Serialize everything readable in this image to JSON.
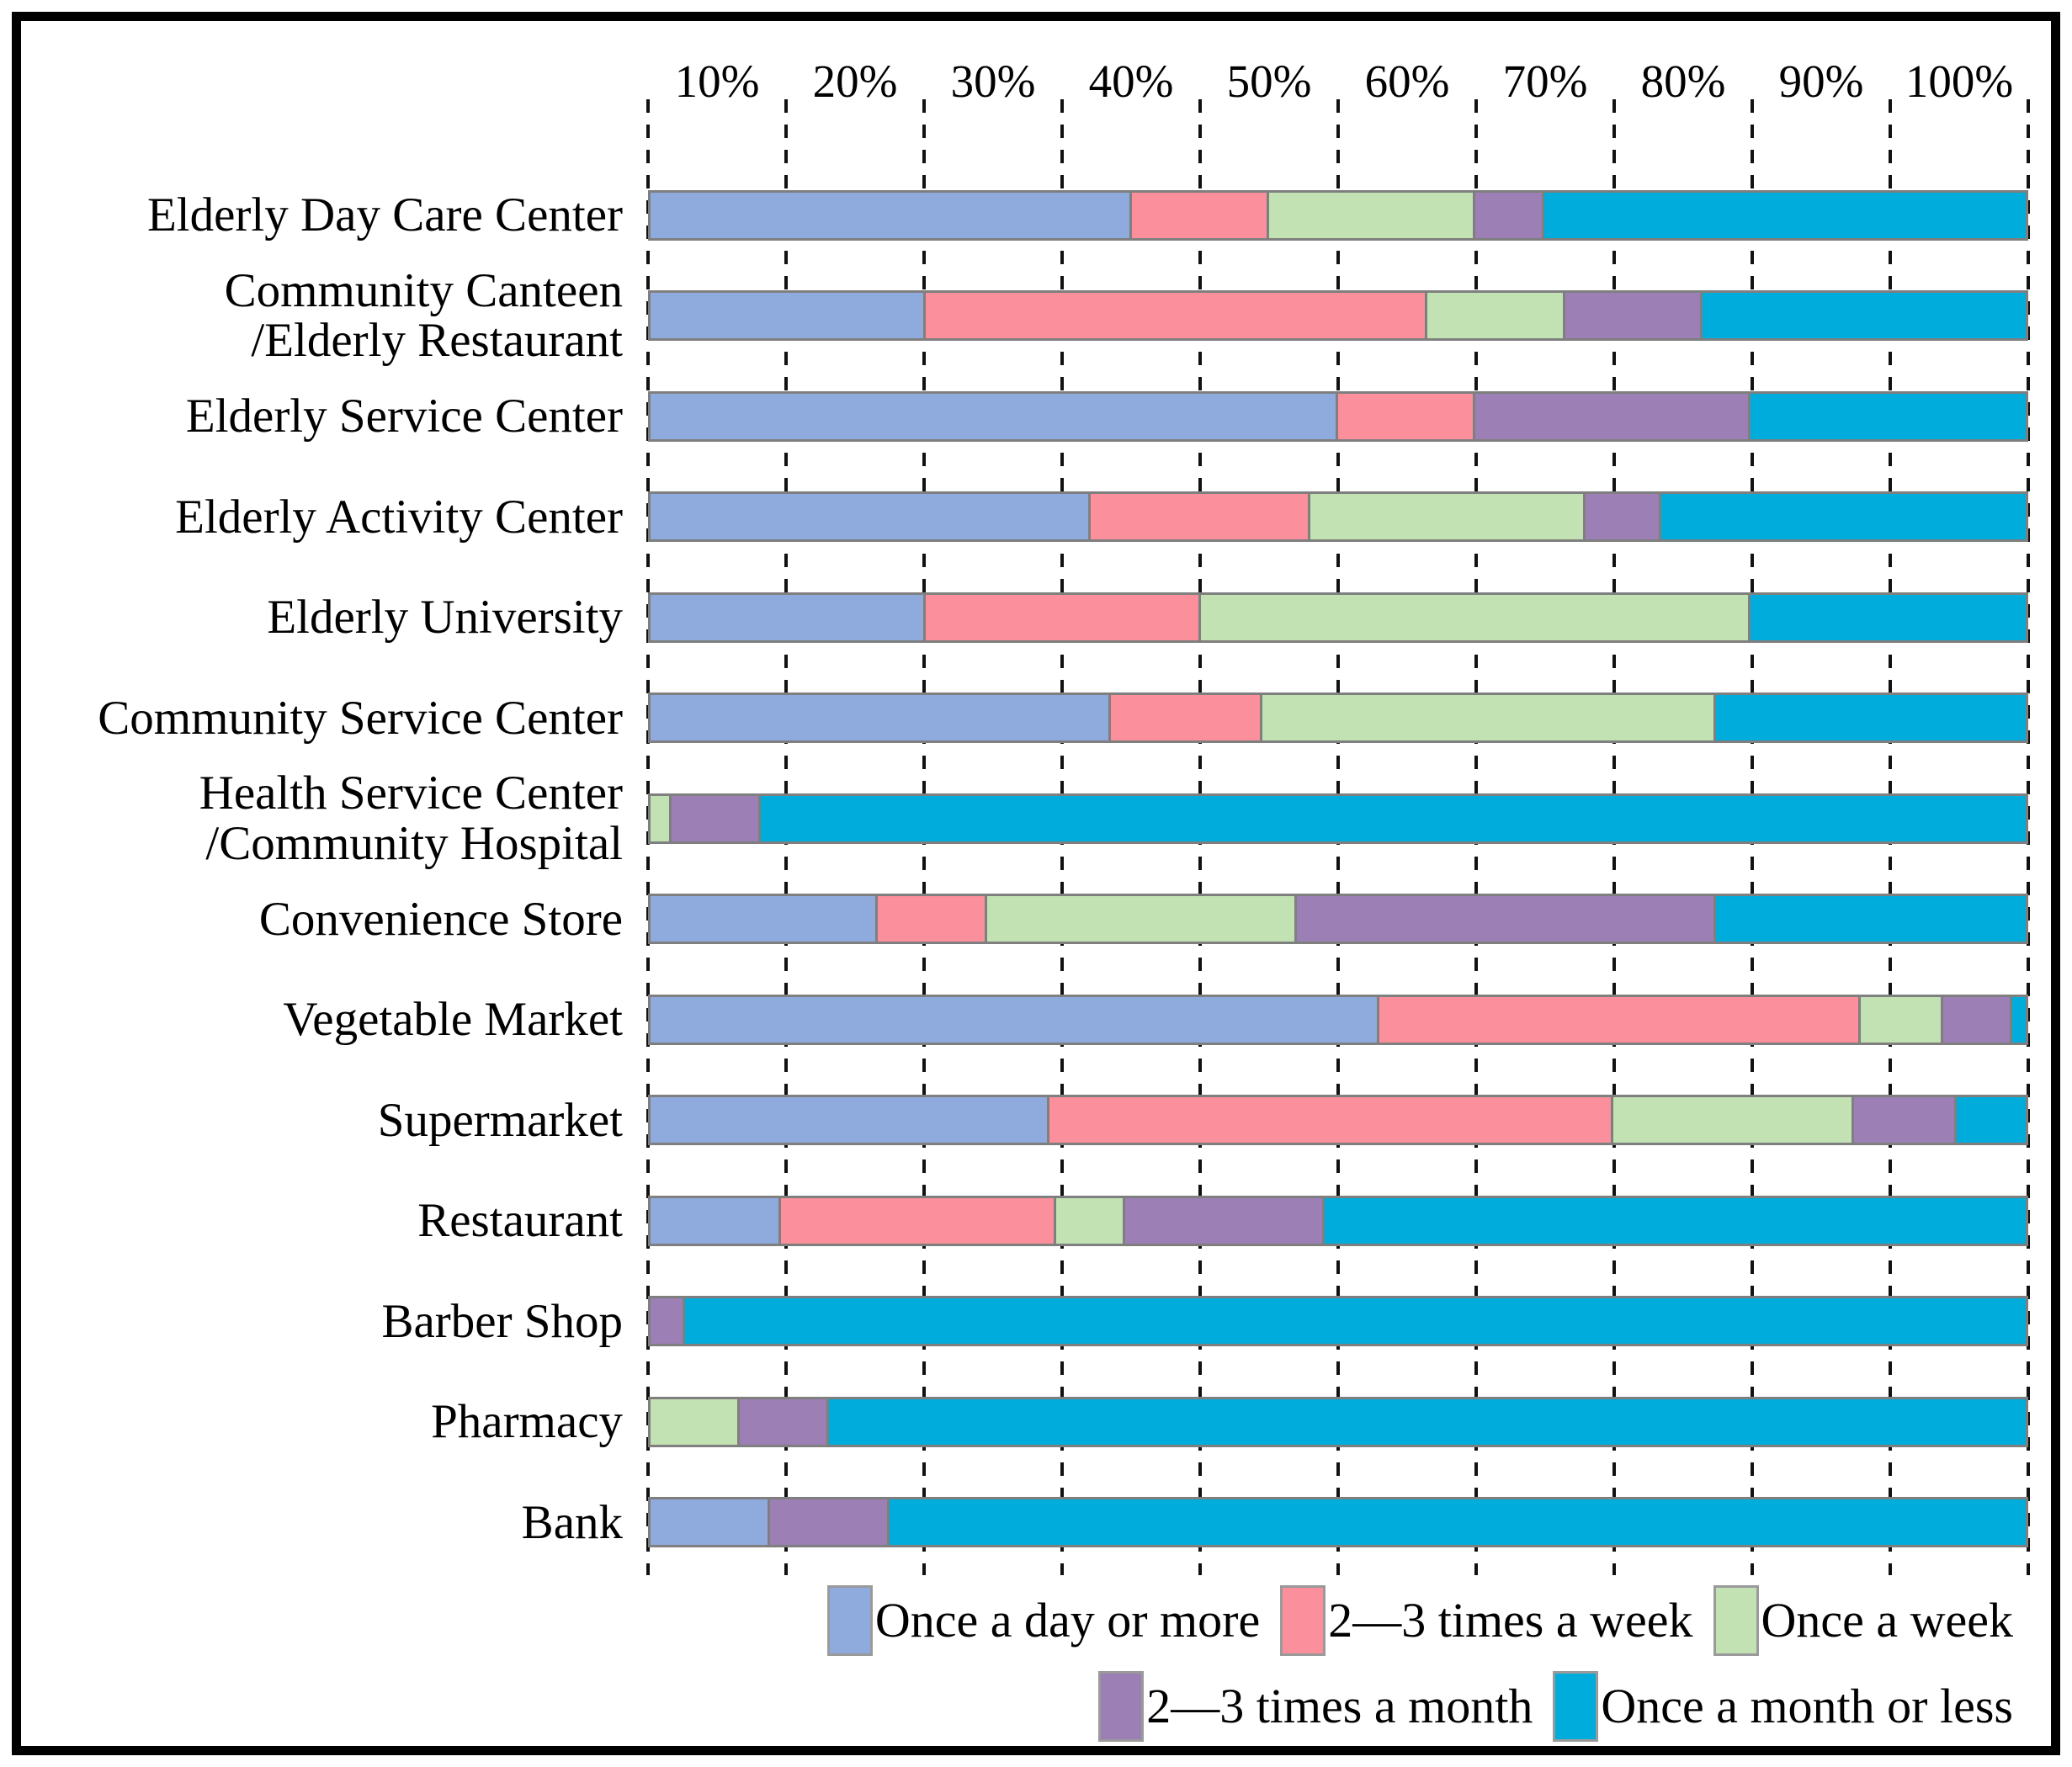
{
  "figure": {
    "background": "#ffffff",
    "border_color": "#000000",
    "plot_border_color": "#7F7F7F",
    "gridline_color": "#111111",
    "gridline_style": "dashed"
  },
  "axis": {
    "tick_labels": [
      "10%",
      "20%",
      "30%",
      "40%",
      "50%",
      "60%",
      "70%",
      "80%",
      "90%",
      "100%"
    ],
    "range_percent": [
      0,
      100
    ]
  },
  "legend": {
    "rows": [
      [
        0,
        1,
        2
      ],
      [
        3,
        4
      ]
    ]
  },
  "chart_data": {
    "type": "bar",
    "orientation": "horizontal",
    "stacked": true,
    "units": "percent",
    "xlim": [
      0,
      100
    ],
    "x_tick_labels": [
      "10%",
      "20%",
      "30%",
      "40%",
      "50%",
      "60%",
      "70%",
      "80%",
      "90%",
      "100%"
    ],
    "grid": "dashed-vertical",
    "legend_position": "bottom",
    "categories": [
      "Elderly Day Care Center",
      "Community Canteen\n/Elderly Restaurant",
      "Elderly Service Center",
      "Elderly Activity Center",
      "Elderly University",
      "Community Service Center",
      "Health Service Center\n/Community Hospital",
      "Convenience Store",
      "Vegetable Market",
      "Supermarket",
      "Restaurant",
      "Barber Shop",
      "Pharmacy",
      "Bank"
    ],
    "series": [
      {
        "name": "Once a day or more",
        "color": "#8FAADC",
        "values": [
          35,
          20,
          50,
          32,
          20,
          33.5,
          0,
          16.5,
          53,
          29,
          9.5,
          0,
          0,
          8.7
        ]
      },
      {
        "name": "2—3 times a week",
        "color": "#FB8F9B",
        "values": [
          10,
          36.5,
          10,
          16,
          20,
          11,
          0,
          8,
          35,
          41,
          20,
          0,
          0,
          0
        ]
      },
      {
        "name": "Once a week",
        "color": "#C2E2B3",
        "values": [
          15,
          10,
          0,
          20,
          40,
          33,
          1.5,
          22.5,
          6,
          17.5,
          5,
          0,
          6.5,
          0
        ]
      },
      {
        "name": "2—3 times a month",
        "color": "#9B7FB5",
        "values": [
          5,
          10,
          20,
          5.5,
          0,
          0,
          6.5,
          30.5,
          5,
          7.5,
          14.5,
          2.5,
          6.5,
          8.7
        ]
      },
      {
        "name": "Once a month or less",
        "color": "#00ACDB",
        "values": [
          35,
          23.5,
          20,
          26.5,
          20,
          22.5,
          92,
          22.5,
          1,
          5,
          51,
          97.5,
          87,
          82.6
        ]
      }
    ]
  }
}
